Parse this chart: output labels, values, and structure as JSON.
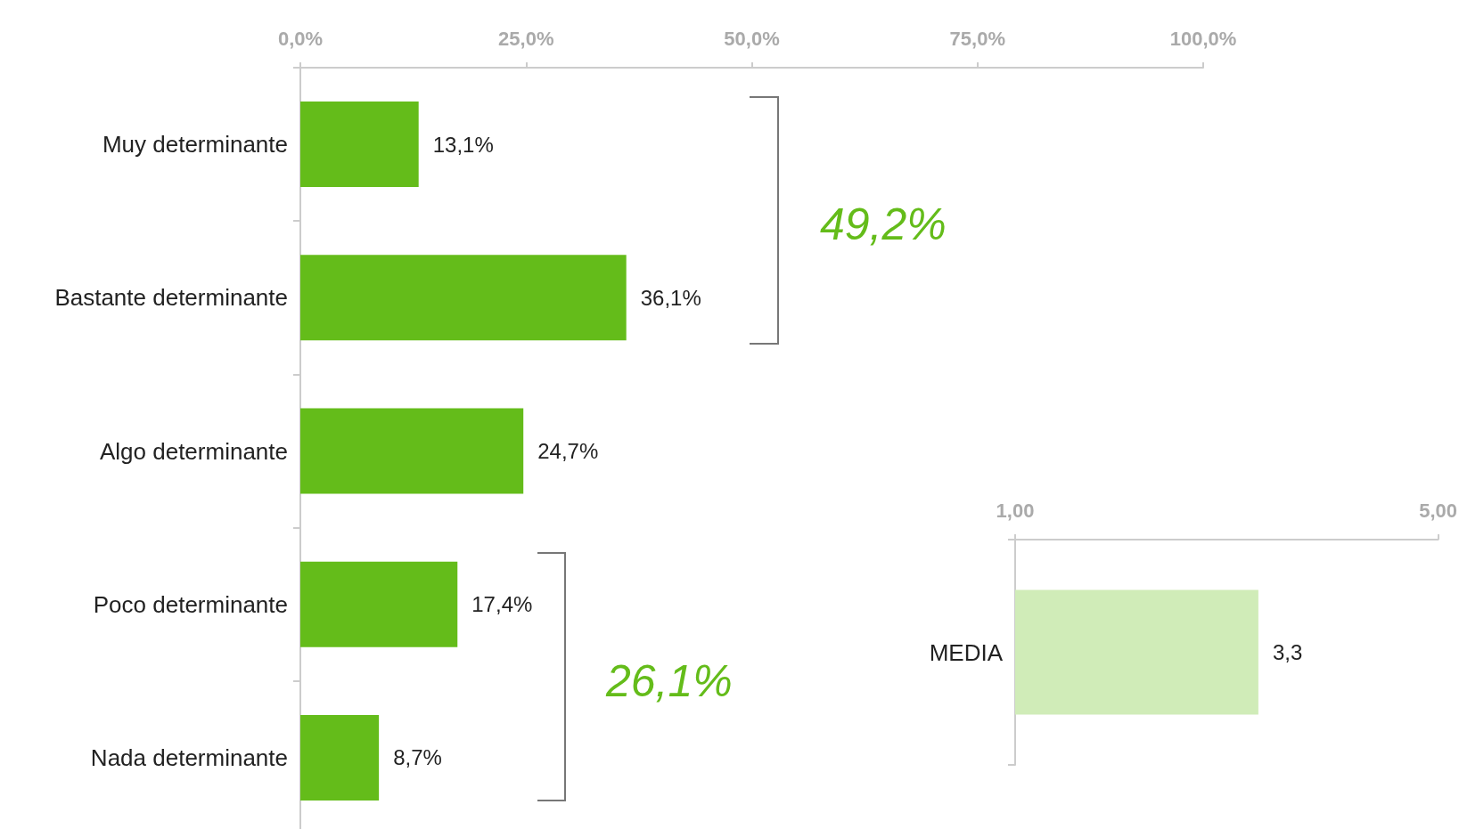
{
  "chart_data": [
    {
      "type": "bar",
      "orientation": "horizontal",
      "categories": [
        "Muy determinante",
        "Bastante determinante",
        "Algo determinante",
        "Poco determinante",
        "Nada determinante"
      ],
      "values": [
        13.1,
        36.1,
        24.7,
        17.4,
        8.7
      ],
      "value_labels": [
        "13,1%",
        "36,1%",
        "24,7%",
        "17,4%",
        "8,7%"
      ],
      "color": "#64bc1a",
      "xlim": [
        0,
        100
      ],
      "xticks": [
        {
          "value": 0,
          "label": "0,0%"
        },
        {
          "value": 25,
          "label": "25,0%"
        },
        {
          "value": 50,
          "label": "50,0%"
        },
        {
          "value": 75,
          "label": "75,0%"
        },
        {
          "value": 100,
          "label": "100,0%"
        }
      ],
      "grid": false,
      "annotations": [
        "49,2%",
        "26,1%"
      ]
    },
    {
      "type": "bar",
      "orientation": "horizontal",
      "categories": [
        "MEDIA"
      ],
      "values": [
        3.3
      ],
      "value_labels": [
        "3,3"
      ],
      "color": "#d0ecb8",
      "xlim": [
        1,
        5
      ],
      "xticks": [
        {
          "value": 1,
          "label": "1,00"
        },
        {
          "value": 5,
          "label": "5,00"
        }
      ],
      "grid": false
    }
  ]
}
